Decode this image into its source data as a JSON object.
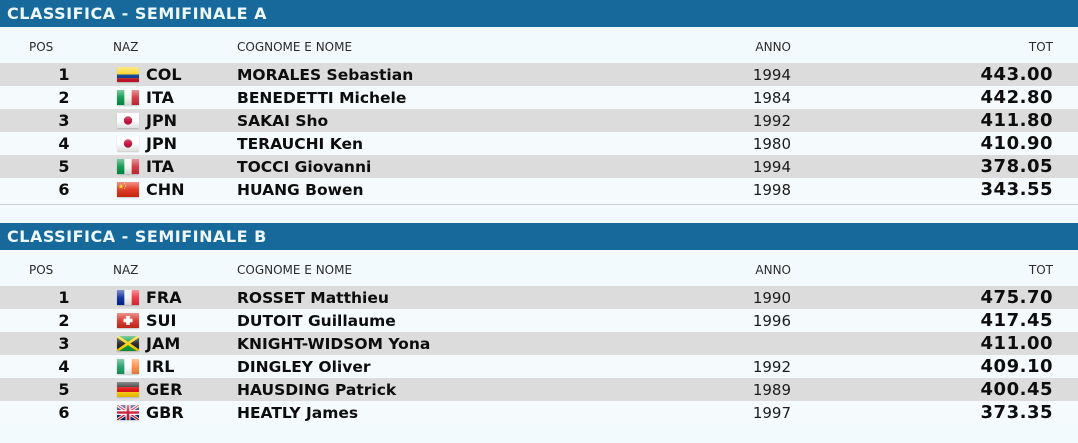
{
  "colors": {
    "title_bar_blue": "#17699C",
    "title_text": "#EEF7FB",
    "row_stripe_gray": "#DCDCDD",
    "row_stripe_light": "#F5FBFD",
    "page_background": "#F3FAFD",
    "divider_gray": "#CCD3D7"
  },
  "tables": [
    {
      "title": "CLASSIFICA - SEMIFINALE A",
      "columns": {
        "pos": "POS",
        "naz": "NAZ",
        "name": "COGNOME E NOME",
        "anno": "ANNO",
        "tot": "TOT"
      },
      "rows": [
        {
          "pos": "1",
          "naz": "COL",
          "name": "MORALES Sebastian",
          "anno": "1994",
          "tot": "443.00"
        },
        {
          "pos": "2",
          "naz": "ITA",
          "name": "BENEDETTI Michele",
          "anno": "1984",
          "tot": "442.80"
        },
        {
          "pos": "3",
          "naz": "JPN",
          "name": "SAKAI Sho",
          "anno": "1992",
          "tot": "411.80"
        },
        {
          "pos": "4",
          "naz": "JPN",
          "name": "TERAUCHI Ken",
          "anno": "1980",
          "tot": "410.90"
        },
        {
          "pos": "5",
          "naz": "ITA",
          "name": "TOCCI Giovanni",
          "anno": "1994",
          "tot": "378.05"
        },
        {
          "pos": "6",
          "naz": "CHN",
          "name": "HUANG Bowen",
          "anno": "1998",
          "tot": "343.55"
        }
      ]
    },
    {
      "title": "CLASSIFICA - SEMIFINALE B",
      "columns": {
        "pos": "POS",
        "naz": "NAZ",
        "name": "COGNOME E NOME",
        "anno": "ANNO",
        "tot": "TOT"
      },
      "rows": [
        {
          "pos": "1",
          "naz": "FRA",
          "name": "ROSSET Matthieu",
          "anno": "1990",
          "tot": "475.70"
        },
        {
          "pos": "2",
          "naz": "SUI",
          "name": "DUTOIT Guillaume",
          "anno": "1996",
          "tot": "417.45"
        },
        {
          "pos": "3",
          "naz": "JAM",
          "name": "KNIGHT-WIDSOM Yona",
          "anno": "",
          "tot": "411.00"
        },
        {
          "pos": "4",
          "naz": "IRL",
          "name": "DINGLEY Oliver",
          "anno": "1992",
          "tot": "409.10"
        },
        {
          "pos": "5",
          "naz": "GER",
          "name": "HAUSDING Patrick",
          "anno": "1989",
          "tot": "400.45"
        },
        {
          "pos": "6",
          "naz": "GBR",
          "name": "HEATLY James",
          "anno": "1997",
          "tot": "373.35"
        }
      ]
    }
  ]
}
